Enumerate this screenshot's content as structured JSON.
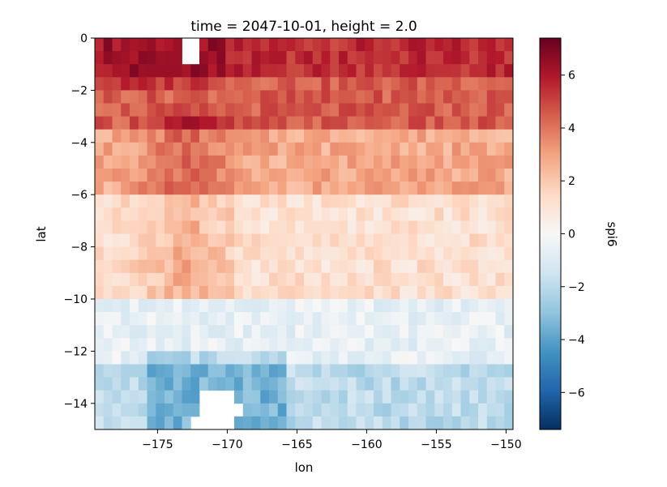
{
  "chart_data": {
    "type": "heatmap",
    "title": "time = 2047-10-01, height = 2.0",
    "xlabel": "lon",
    "ylabel": "lat",
    "xlim": [
      -179.5,
      -149.5
    ],
    "ylim": [
      -15,
      0
    ],
    "xticks": [
      {
        "value": -175,
        "label": "−175"
      },
      {
        "value": -170,
        "label": "−170"
      },
      {
        "value": -165,
        "label": "−165"
      },
      {
        "value": -160,
        "label": "−160"
      },
      {
        "value": -155,
        "label": "−155"
      },
      {
        "value": -150,
        "label": "−150"
      }
    ],
    "yticks": [
      {
        "value": 0,
        "label": "0"
      },
      {
        "value": -2,
        "label": "−2"
      },
      {
        "value": -4,
        "label": "−4"
      },
      {
        "value": -6,
        "label": "−6"
      },
      {
        "value": -8,
        "label": "−8"
      },
      {
        "value": -10,
        "label": "−10"
      },
      {
        "value": -12,
        "label": "−12"
      },
      {
        "value": -14,
        "label": "−14"
      }
    ],
    "colorbar": {
      "label": "spi6",
      "colormap": "RdBu_r",
      "vmin": -7.4,
      "vmax": 7.4,
      "ticks": [
        {
          "value": 6,
          "label": "6"
        },
        {
          "value": 4,
          "label": "4"
        },
        {
          "value": 2,
          "label": "2"
        },
        {
          "value": 0,
          "label": "0"
        },
        {
          "value": -2,
          "label": "−2"
        },
        {
          "value": -4,
          "label": "−4"
        },
        {
          "value": -6,
          "label": "−6"
        }
      ]
    },
    "grid": {
      "lon_start": -179.5,
      "lon_step": 0.625,
      "nx": 48,
      "lat_start": 0,
      "lat_step": -0.5,
      "ny": 30
    },
    "approx_field_profile": [
      {
        "lat_range": [
          0,
          -1.5
        ],
        "typical_value": 5.5
      },
      {
        "lat_range": [
          -1.5,
          -3.5
        ],
        "typical_value": 4.5
      },
      {
        "lat_range": [
          -3.5,
          -6
        ],
        "typical_value": 2.8
      },
      {
        "lat_range": [
          -6,
          -10
        ],
        "typical_value": 1.2
      },
      {
        "lat_range": [
          -10,
          -12.5
        ],
        "typical_value": -0.6
      },
      {
        "lat_range": [
          -12.5,
          -15
        ],
        "typical_value": -2.0
      }
    ],
    "missing_cells": [
      {
        "lon": [
          -173.2,
          -172.3
        ],
        "lat": [
          0,
          -1.0
        ]
      },
      {
        "lon": [
          -171.7,
          -169.7
        ],
        "lat": [
          -13.5,
          -15
        ]
      },
      {
        "lon": [
          -169.9,
          -168.8
        ],
        "lat": [
          -14.0,
          -14.6
        ]
      },
      {
        "lon": [
          -172.8,
          -172.3
        ],
        "lat": [
          -14.6,
          -15
        ]
      }
    ]
  }
}
